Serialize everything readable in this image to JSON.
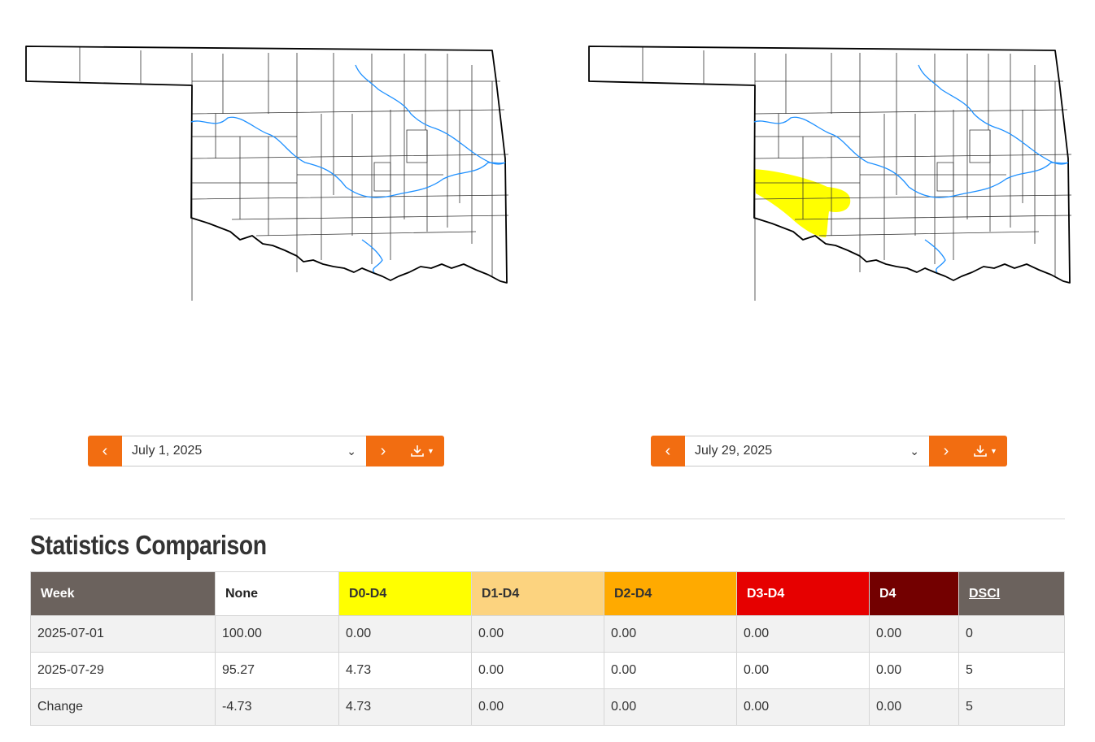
{
  "maps": [
    {
      "id": "left",
      "date_label": "July 1, 2025",
      "drought_d0_present": false
    },
    {
      "id": "right",
      "date_label": "July 29, 2025",
      "drought_d0_present": true
    }
  ],
  "controls": {
    "prev_icon": "chevron-left-icon",
    "next_icon": "chevron-right-icon",
    "download_icon": "download-icon",
    "dropdown_icon": "chevron-down-icon",
    "accent_color": "#f26d11"
  },
  "statistics": {
    "title": "Statistics Comparison",
    "headers": {
      "week": "Week",
      "none": "None",
      "d0": "D0-D4",
      "d1": "D1-D4",
      "d2": "D2-D4",
      "d3": "D3-D4",
      "d4": "D4",
      "dsci": "DSCI"
    },
    "header_colors": {
      "d0": "#ffff00",
      "d1": "#fcd37f",
      "d2": "#ffaa00",
      "d3": "#e60000",
      "d4": "#730000"
    },
    "rows": [
      {
        "week": "2025-07-01",
        "none": "100.00",
        "d0": "0.00",
        "d1": "0.00",
        "d2": "0.00",
        "d3": "0.00",
        "d4": "0.00",
        "dsci": "0"
      },
      {
        "week": "2025-07-29",
        "none": "95.27",
        "d0": "4.73",
        "d1": "0.00",
        "d2": "0.00",
        "d3": "0.00",
        "d4": "0.00",
        "dsci": "5"
      },
      {
        "week": "Change",
        "none": "-4.73",
        "d0": "4.73",
        "d1": "0.00",
        "d2": "0.00",
        "d3": "0.00",
        "d4": "0.00",
        "dsci": "5"
      }
    ]
  }
}
